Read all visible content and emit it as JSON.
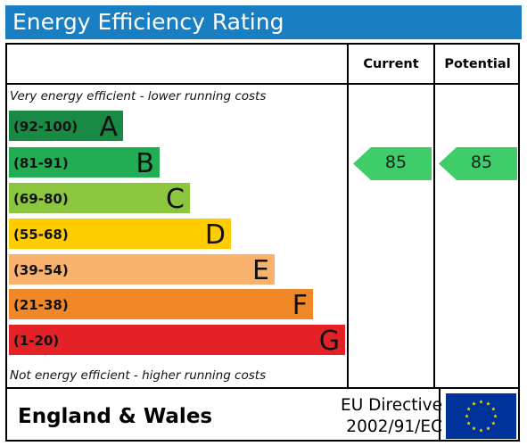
{
  "title": "Energy Efficiency Rating",
  "columns": {
    "current": "Current",
    "potential": "Potential"
  },
  "top_note": "Very energy efficient - lower running costs",
  "bottom_note": "Not energy efficient - higher running costs",
  "bands": [
    {
      "range": "(92-100)",
      "letter": "A",
      "color": "#198a43"
    },
    {
      "range": "(81-91)",
      "letter": "B",
      "color": "#22ad55"
    },
    {
      "range": "(69-80)",
      "letter": "C",
      "color": "#8cc63f"
    },
    {
      "range": "(55-68)",
      "letter": "D",
      "color": "#ffcc00"
    },
    {
      "range": "(39-54)",
      "letter": "E",
      "color": "#f9b26d"
    },
    {
      "range": "(21-38)",
      "letter": "F",
      "color": "#f08828"
    },
    {
      "range": "(1-20)",
      "letter": "G",
      "color": "#e52128"
    }
  ],
  "current_rating": "85",
  "potential_rating": "85",
  "rating_arrow_color": "#3fcd6a",
  "region": "England & Wales",
  "directive": {
    "line1": "EU Directive",
    "line2": "2002/91/EC"
  },
  "header_color": "#1a7ec2",
  "flag_color": "#003399",
  "star_color": "#ffdd00"
}
